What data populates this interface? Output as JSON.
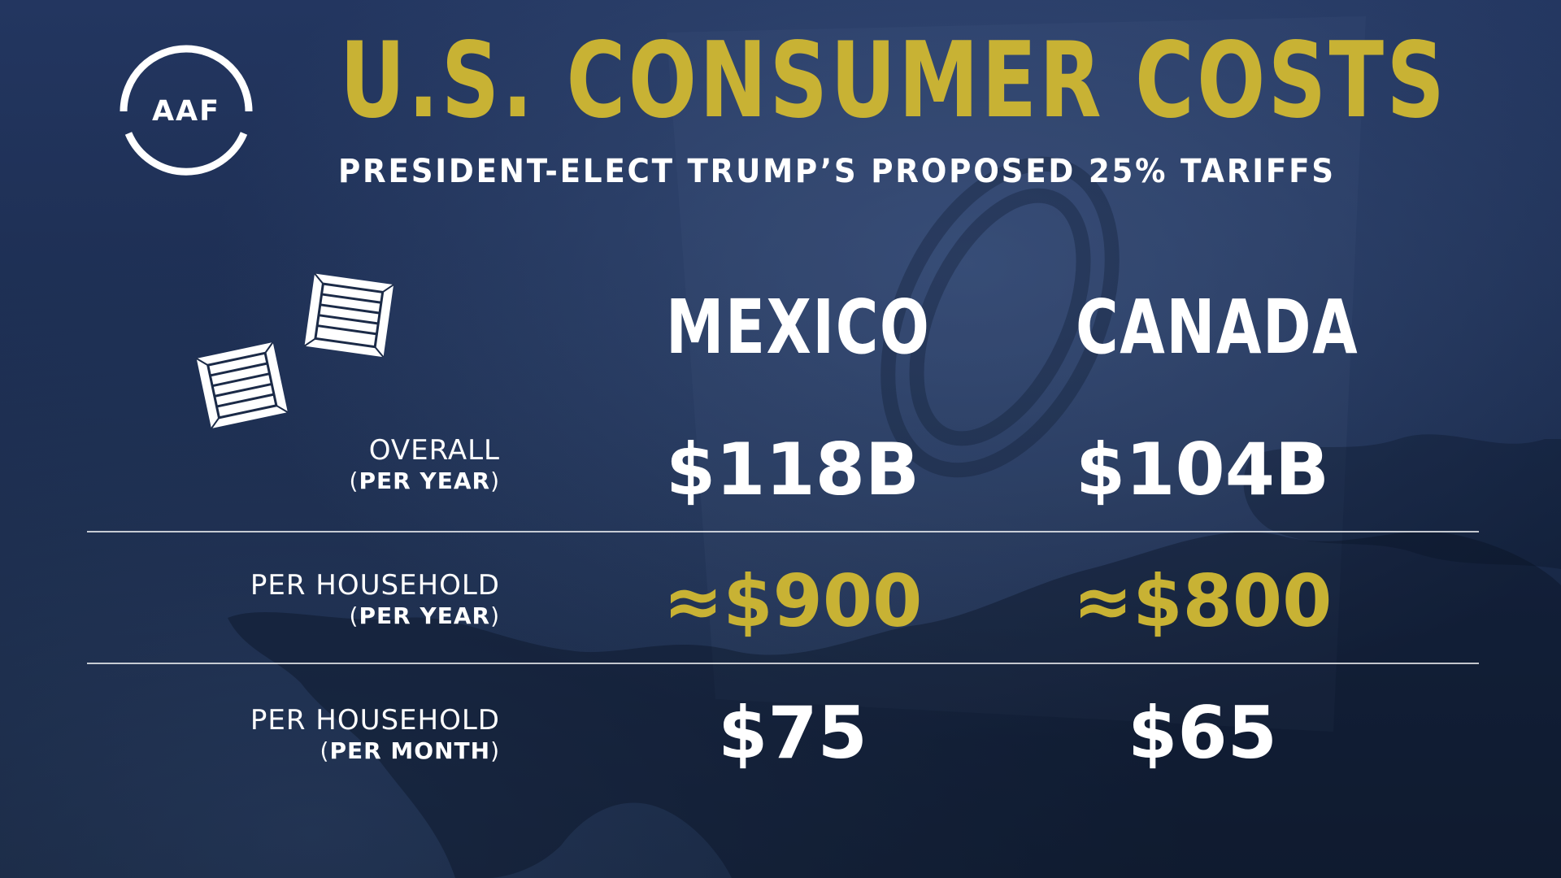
{
  "logo": {
    "text": "AAF",
    "icon": "aaf-circle-logo-icon"
  },
  "header": {
    "title": "U.S. CONSUMER COSTS",
    "subtitle": "PRESIDENT-ELECT TRUMP’S PROPOSED 25% TARIFFS"
  },
  "decorations": {
    "icons": [
      "shipping-crate-icon",
      "shipping-crate-icon"
    ]
  },
  "table": {
    "columns": [
      "MEXICO",
      "CANADA"
    ],
    "rows": [
      {
        "label_line1": "OVERALL",
        "label_line2_open": "(",
        "label_line2_bold": "PER YEAR",
        "label_line2_close": ")",
        "mexico": "$118B",
        "canada": "$104B",
        "highlight": false
      },
      {
        "label_line1": "PER HOUSEHOLD",
        "label_line2_open": "(",
        "label_line2_bold": "PER YEAR",
        "label_line2_close": ")",
        "mexico": "≈$900",
        "canada": "≈$800",
        "highlight": true
      },
      {
        "label_line1": "PER HOUSEHOLD",
        "label_line2_open": "(",
        "label_line2_bold": "PER MONTH",
        "label_line2_close": ")",
        "mexico": "$75",
        "canada": "$65",
        "highlight": false
      }
    ]
  },
  "colors": {
    "background": "#1b2a47",
    "accent_gold": "#c8b234",
    "text": "#ffffff"
  }
}
